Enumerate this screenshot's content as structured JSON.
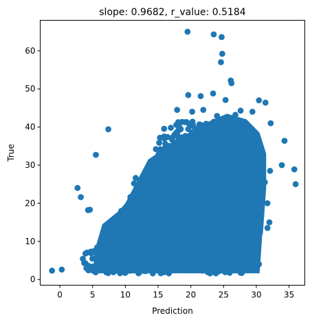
{
  "chart_data": {
    "type": "scatter",
    "title": "slope: 0.9682, r_value: 0.5184",
    "xlabel": "Prediction",
    "ylabel": "True",
    "xlim": [
      -3.0,
      37.4
    ],
    "ylim": [
      -1.5,
      68.0
    ],
    "xticks": [
      0,
      5,
      10,
      15,
      20,
      25,
      30,
      35
    ],
    "yticks": [
      0,
      10,
      20,
      30,
      40,
      50,
      60
    ],
    "grid": false,
    "legend": "none",
    "marker_color": "#1f77b4",
    "series": [
      {
        "x": [
          19.5,
          23.5,
          24.7,
          24.8,
          24.6,
          26.1,
          26.2,
          19.6,
          21.5,
          23.4,
          25.3,
          30.4,
          31.4,
          17.9,
          20.2,
          21.9,
          24.0,
          26.8,
          27.6,
          29.4,
          32.2,
          7.4,
          34.3,
          0.3,
          -1.2,
          2.7,
          3.2,
          4.3,
          4.6,
          5.5,
          32.1,
          31.1,
          33.9,
          35.8,
          36.0,
          31.3,
          32.0,
          30.0,
          29.5,
          31.7,
          30.4,
          31.7
        ],
        "y": [
          65.0,
          64.3,
          63.6,
          59.2,
          57.0,
          52.2,
          51.5,
          48.4,
          48.1,
          48.8,
          47.1,
          47.0,
          46.4,
          44.5,
          44.0,
          44.5,
          42.9,
          43.2,
          44.3,
          44.0,
          41.0,
          39.4,
          36.4,
          2.6,
          2.3,
          24.0,
          21.6,
          18.2,
          18.3,
          32.7,
          28.5,
          26.0,
          30.0,
          28.9,
          25.0,
          25.5,
          15.0,
          10.0,
          8.0,
          13.5,
          4.0,
          20.0
        ]
      }
    ]
  }
}
